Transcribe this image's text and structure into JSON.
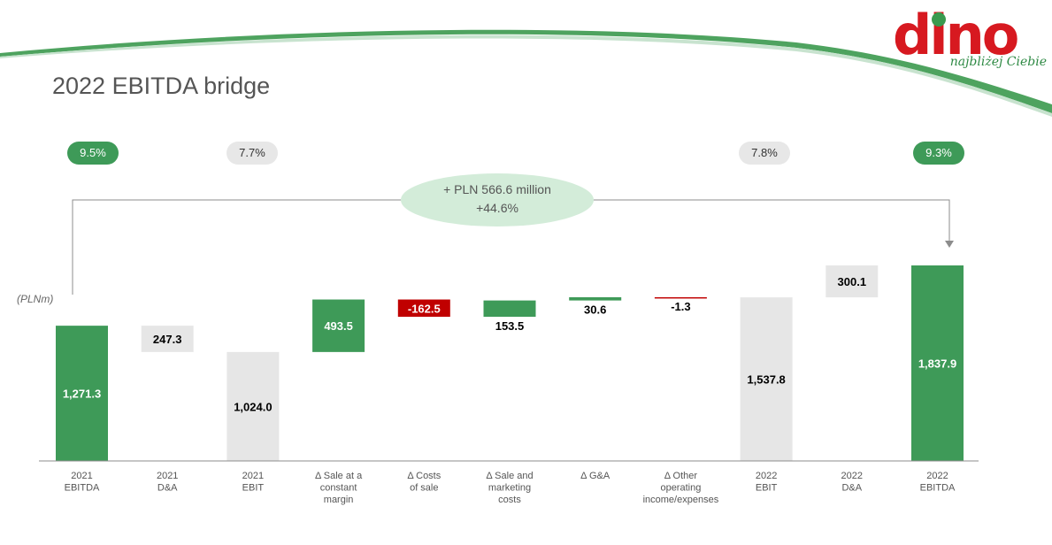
{
  "title": "2022 EBITDA bridge",
  "logo": {
    "word": "dino",
    "tagline": "najbliżej Ciebie"
  },
  "unit_label": "(PLNm)",
  "margin_badges": [
    {
      "label": "9.5%",
      "style": "green",
      "column": 0
    },
    {
      "label": "7.7%",
      "style": "grey",
      "column": 2
    },
    {
      "label": "7.8%",
      "style": "grey",
      "column": 8
    },
    {
      "label": "9.3%",
      "style": "green",
      "column": 10
    }
  ],
  "change": {
    "absolute": "+ PLN 566.6 million",
    "relative": "+44.6%"
  },
  "colors": {
    "green": "#3e9a58",
    "red": "#c00000",
    "grey": "#e6e6e6",
    "light_green": "#d3ecd9",
    "axis": "#8c8c8c"
  },
  "chart_data": {
    "type": "bar",
    "subtype": "waterfall",
    "categories": [
      "2021 EBITDA",
      "2021 D&A",
      "2021 EBIT",
      "Δ Sale at a constant margin",
      "Δ Costs of sale",
      "Δ Sale and marketing costs",
      "Δ G&A",
      "Δ Other operating income/expenses",
      "2022 EBIT",
      "2022 D&A",
      "2022 EBITDA"
    ],
    "tick_labels": [
      [
        "2021",
        "EBITDA"
      ],
      [
        "2021",
        "D&A"
      ],
      [
        "2021",
        "EBIT"
      ],
      [
        "Δ Sale at a",
        "constant",
        "margin"
      ],
      [
        "Δ Costs",
        "of sale"
      ],
      [
        "Δ Sale and",
        "marketing",
        "costs"
      ],
      [
        "Δ G&A"
      ],
      [
        "Δ Other",
        "operating",
        "income/expenses"
      ],
      [
        "2022",
        "EBIT"
      ],
      [
        "2022",
        "D&A"
      ],
      [
        "2022",
        "EBITDA"
      ]
    ],
    "bars": [
      {
        "start": 0,
        "end": 1271.3,
        "label": "1,271.3",
        "color": "green",
        "label_pos": "inside"
      },
      {
        "start": 1024.0,
        "end": 1271.3,
        "label": "247.3",
        "color": "grey",
        "label_pos": "inside"
      },
      {
        "start": 0,
        "end": 1024.0,
        "label": "1,024.0",
        "color": "grey",
        "label_pos": "inside"
      },
      {
        "start": 1024.0,
        "end": 1517.5,
        "label": "493.5",
        "color": "green",
        "label_pos": "inside"
      },
      {
        "start": 1355.0,
        "end": 1517.5,
        "label": "-162.5",
        "color": "red",
        "label_pos": "inside"
      },
      {
        "start": 1355.0,
        "end": 1508.5,
        "label": "153.5",
        "color": "green",
        "label_pos": "below"
      },
      {
        "start": 1508.5,
        "end": 1539.1,
        "label": "30.6",
        "color": "green",
        "label_pos": "below"
      },
      {
        "start": 1537.8,
        "end": 1539.1,
        "label": "-1.3",
        "color": "red",
        "label_pos": "below"
      },
      {
        "start": 0,
        "end": 1537.8,
        "label": "1,537.8",
        "color": "grey",
        "label_pos": "inside"
      },
      {
        "start": 1537.8,
        "end": 1837.9,
        "label": "300.1",
        "color": "grey",
        "label_pos": "inside"
      },
      {
        "start": 0,
        "end": 1837.9,
        "label": "1,837.9",
        "color": "green",
        "label_pos": "inside"
      }
    ],
    "ylabel": "(PLNm)",
    "ylim": [
      0,
      1837.9
    ],
    "grid": false,
    "legend": "none"
  }
}
